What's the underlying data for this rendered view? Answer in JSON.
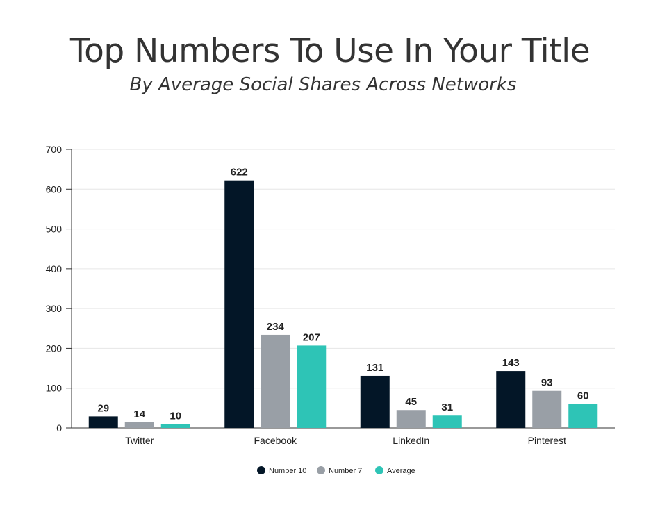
{
  "header": {
    "title": "Top Numbers To Use In Your Title",
    "subtitle": "By Average Social Shares Across Networks"
  },
  "chart_data": {
    "type": "bar",
    "title": "Top Numbers To Use In Your Title",
    "subtitle": "By Average Social Shares Across Networks",
    "xlabel": "",
    "ylabel": "",
    "categories": [
      "Twitter",
      "Facebook",
      "LinkedIn",
      "Pinterest"
    ],
    "series": [
      {
        "name": "Number 10",
        "values": [
          29,
          622,
          131,
          143
        ],
        "color": "#031627"
      },
      {
        "name": "Number 7",
        "values": [
          14,
          234,
          45,
          93
        ],
        "color": "#999fa6"
      },
      {
        "name": "Average",
        "values": [
          10,
          207,
          31,
          60
        ],
        "color": "#2ec4b6"
      }
    ],
    "ylim": [
      0,
      700
    ],
    "yticks": [
      0,
      100,
      200,
      300,
      400,
      500,
      600,
      700
    ],
    "grid": true,
    "legend_position": "bottom",
    "data_labels": true
  }
}
